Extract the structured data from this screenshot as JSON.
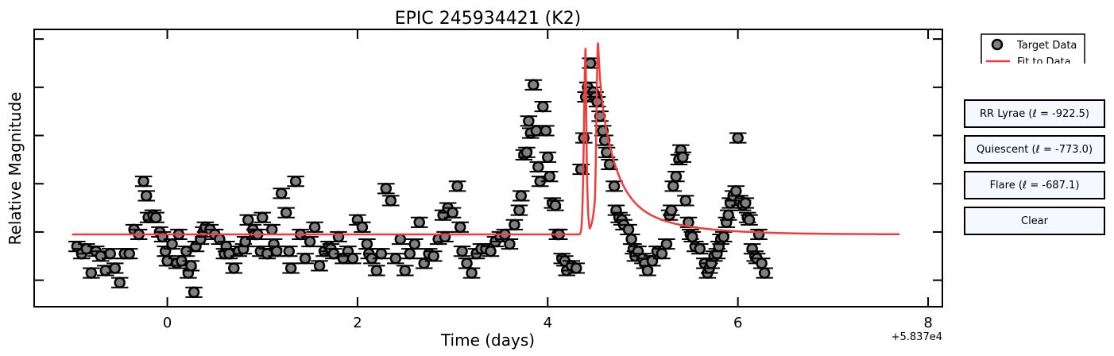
{
  "chart_data": {
    "type": "scatter",
    "title": "EPIC 245934421 (K2)",
    "xlabel": "Time (days)",
    "ylabel": "Relative Magnitude",
    "x_offset_label": "+5.837e4",
    "xlim": [
      -1.4,
      8.15
    ],
    "ylim": [
      -0.55,
      5.2
    ],
    "xticks": [
      0,
      2,
      4,
      6,
      8
    ],
    "yticks_unlabeled": [
      0,
      1,
      2,
      3,
      4,
      5
    ],
    "error_bar_halfwidth": 0.09,
    "error_bar_halfheight": 0.1,
    "legend": {
      "position": "upper-right-outside",
      "entries": [
        "Target Data",
        "Fit to Data"
      ]
    },
    "series": [
      {
        "name": "Target Data",
        "marker": "circle",
        "color": "#808080",
        "edge_color": "#000000",
        "points": [
          [
            -0.95,
            0.7
          ],
          [
            -0.9,
            0.55
          ],
          [
            -0.85,
            0.65
          ],
          [
            -0.8,
            0.15
          ],
          [
            -0.75,
            0.6
          ],
          [
            -0.7,
            0.5
          ],
          [
            -0.65,
            0.2
          ],
          [
            -0.6,
            0.55
          ],
          [
            -0.55,
            0.25
          ],
          [
            -0.5,
            -0.05
          ],
          [
            -0.45,
            0.55
          ],
          [
            -0.4,
            0.55
          ],
          [
            -0.35,
            1.05
          ],
          [
            -0.3,
            0.95
          ],
          [
            -0.25,
            2.05
          ],
          [
            -0.22,
            1.75
          ],
          [
            -0.2,
            1.3
          ],
          [
            -0.15,
            1.35
          ],
          [
            -0.12,
            1.3
          ],
          [
            -0.08,
            1.0
          ],
          [
            -0.05,
            0.9
          ],
          [
            -0.02,
            0.6
          ],
          [
            0.0,
            0.4
          ],
          [
            0.05,
            0.75
          ],
          [
            0.1,
            0.35
          ],
          [
            0.12,
            0.95
          ],
          [
            0.15,
            0.4
          ],
          [
            0.2,
            0.6
          ],
          [
            0.22,
            0.15
          ],
          [
            0.25,
            0.3
          ],
          [
            0.28,
            -0.25
          ],
          [
            0.3,
            0.7
          ],
          [
            0.35,
            0.85
          ],
          [
            0.38,
            1.0
          ],
          [
            0.4,
            1.1
          ],
          [
            0.45,
            1.05
          ],
          [
            0.5,
            0.95
          ],
          [
            0.55,
            0.85
          ],
          [
            0.6,
            0.55
          ],
          [
            0.62,
            0.7
          ],
          [
            0.65,
            0.55
          ],
          [
            0.7,
            0.25
          ],
          [
            0.75,
            0.6
          ],
          [
            0.8,
            0.65
          ],
          [
            0.82,
            0.8
          ],
          [
            0.85,
            1.25
          ],
          [
            0.9,
            1.05
          ],
          [
            0.92,
            0.95
          ],
          [
            0.95,
            0.95
          ],
          [
            0.98,
            0.6
          ],
          [
            1.0,
            1.3
          ],
          [
            1.05,
            0.55
          ],
          [
            1.1,
            1.05
          ],
          [
            1.12,
            0.75
          ],
          [
            1.15,
            0.6
          ],
          [
            1.2,
            1.8
          ],
          [
            1.25,
            1.4
          ],
          [
            1.28,
            0.6
          ],
          [
            1.3,
            0.25
          ],
          [
            1.35,
            2.05
          ],
          [
            1.4,
            0.95
          ],
          [
            1.45,
            0.45
          ],
          [
            1.5,
            0.8
          ],
          [
            1.55,
            1.1
          ],
          [
            1.6,
            0.3
          ],
          [
            1.65,
            0.6
          ],
          [
            1.7,
            0.7
          ],
          [
            1.72,
            0.65
          ],
          [
            1.75,
            0.55
          ],
          [
            1.8,
            0.9
          ],
          [
            1.85,
            0.45
          ],
          [
            1.9,
            0.6
          ],
          [
            1.95,
            0.45
          ],
          [
            2.0,
            1.25
          ],
          [
            2.05,
            1.1
          ],
          [
            2.1,
            0.75
          ],
          [
            2.12,
            0.55
          ],
          [
            2.15,
            0.45
          ],
          [
            2.2,
            0.2
          ],
          [
            2.25,
            0.55
          ],
          [
            2.3,
            1.9
          ],
          [
            2.35,
            1.65
          ],
          [
            2.4,
            0.45
          ],
          [
            2.45,
            0.85
          ],
          [
            2.5,
            0.2
          ],
          [
            2.55,
            0.55
          ],
          [
            2.6,
            0.75
          ],
          [
            2.65,
            1.2
          ],
          [
            2.7,
            0.35
          ],
          [
            2.75,
            0.55
          ],
          [
            2.8,
            0.5
          ],
          [
            2.85,
            0.85
          ],
          [
            2.9,
            1.35
          ],
          [
            2.92,
            0.9
          ],
          [
            2.95,
            1.5
          ],
          [
            3.0,
            1.4
          ],
          [
            3.05,
            1.95
          ],
          [
            3.08,
            1.1
          ],
          [
            3.1,
            0.6
          ],
          [
            3.15,
            0.35
          ],
          [
            3.2,
            0.15
          ],
          [
            3.25,
            0.55
          ],
          [
            3.3,
            0.65
          ],
          [
            3.35,
            0.65
          ],
          [
            3.4,
            0.6
          ],
          [
            3.45,
            0.8
          ],
          [
            3.5,
            0.9
          ],
          [
            3.55,
            0.95
          ],
          [
            3.6,
            0.75
          ],
          [
            3.65,
            1.15
          ],
          [
            3.7,
            1.45
          ],
          [
            3.72,
            1.75
          ],
          [
            3.75,
            2.6
          ],
          [
            3.78,
            2.65
          ],
          [
            3.8,
            3.3
          ],
          [
            3.82,
            3.05
          ],
          [
            3.85,
            4.05
          ],
          [
            3.88,
            3.1
          ],
          [
            3.9,
            2.35
          ],
          [
            3.92,
            2.05
          ],
          [
            3.95,
            3.6
          ],
          [
            3.98,
            3.1
          ],
          [
            4.0,
            2.55
          ],
          [
            4.02,
            2.15
          ],
          [
            4.05,
            1.6
          ],
          [
            4.08,
            1.55
          ],
          [
            4.1,
            0.95
          ],
          [
            4.12,
            0.95
          ],
          [
            4.15,
            0.45
          ],
          [
            4.18,
            0.4
          ],
          [
            4.2,
            0.2
          ],
          [
            4.25,
            0.3
          ],
          [
            4.3,
            0.25
          ],
          [
            4.35,
            2.3
          ],
          [
            4.38,
            2.95
          ],
          [
            4.4,
            3.8
          ],
          [
            4.42,
            4.0
          ],
          [
            4.45,
            4.5
          ],
          [
            4.48,
            3.9
          ],
          [
            4.5,
            3.8
          ],
          [
            4.52,
            3.7
          ],
          [
            4.55,
            3.4
          ],
          [
            4.58,
            3.1
          ],
          [
            4.6,
            2.9
          ],
          [
            4.62,
            2.65
          ],
          [
            4.65,
            2.4
          ],
          [
            4.7,
            1.95
          ],
          [
            4.72,
            1.45
          ],
          [
            4.75,
            1.3
          ],
          [
            4.78,
            1.25
          ],
          [
            4.8,
            1.15
          ],
          [
            4.85,
            1.05
          ],
          [
            4.88,
            0.85
          ],
          [
            4.9,
            0.65
          ],
          [
            4.92,
            0.5
          ],
          [
            4.95,
            0.6
          ],
          [
            5.0,
            0.45
          ],
          [
            5.02,
            0.35
          ],
          [
            5.05,
            0.2
          ],
          [
            5.1,
            0.4
          ],
          [
            5.15,
            0.6
          ],
          [
            5.2,
            0.55
          ],
          [
            5.25,
            0.75
          ],
          [
            5.28,
            1.35
          ],
          [
            5.3,
            1.45
          ],
          [
            5.32,
            1.95
          ],
          [
            5.35,
            2.15
          ],
          [
            5.38,
            2.5
          ],
          [
            5.4,
            2.7
          ],
          [
            5.42,
            2.55
          ],
          [
            5.45,
            1.65
          ],
          [
            5.48,
            1.2
          ],
          [
            5.5,
            0.95
          ],
          [
            5.52,
            0.9
          ],
          [
            5.55,
            0.7
          ],
          [
            5.6,
            0.65
          ],
          [
            5.65,
            0.35
          ],
          [
            5.68,
            0.15
          ],
          [
            5.7,
            0.25
          ],
          [
            5.72,
            0.35
          ],
          [
            5.75,
            0.5
          ],
          [
            5.78,
            0.55
          ],
          [
            5.8,
            0.7
          ],
          [
            5.82,
            0.85
          ],
          [
            5.85,
            0.9
          ],
          [
            5.88,
            1.2
          ],
          [
            5.9,
            1.35
          ],
          [
            5.92,
            1.6
          ],
          [
            5.95,
            1.75
          ],
          [
            5.98,
            1.85
          ],
          [
            6.0,
            2.95
          ],
          [
            6.02,
            1.65
          ],
          [
            6.05,
            1.55
          ],
          [
            6.08,
            1.6
          ],
          [
            6.1,
            1.3
          ],
          [
            6.12,
            1.25
          ],
          [
            6.15,
            0.65
          ],
          [
            6.18,
            0.5
          ],
          [
            6.2,
            0.45
          ],
          [
            6.22,
            0.95
          ],
          [
            6.25,
            0.35
          ],
          [
            6.28,
            0.15
          ]
        ]
      },
      {
        "name": "Fit to Data",
        "type": "line",
        "color": "#f03c3c",
        "model": {
          "baseline": 0.95,
          "start": -1.0,
          "end": 7.7,
          "flare1_peak_time": 4.4,
          "flare1_peak_value": 4.85,
          "flare2_peak_time": 4.53,
          "flare2_peak_value": 4.95,
          "rise_width": 0.025,
          "decay_amp_fast": 2.4,
          "decay_tau_fast": 0.16,
          "decay_amp_slow": 0.9,
          "decay_tau_slow": 0.55
        }
      }
    ]
  },
  "buttons": {
    "rr_lyrae": "RR Lyrae (ℓ = -922.5)",
    "quiescent": "Quiescent (ℓ = -773.0)",
    "flare": "Flare (ℓ = -687.1)",
    "clear": "Clear"
  }
}
